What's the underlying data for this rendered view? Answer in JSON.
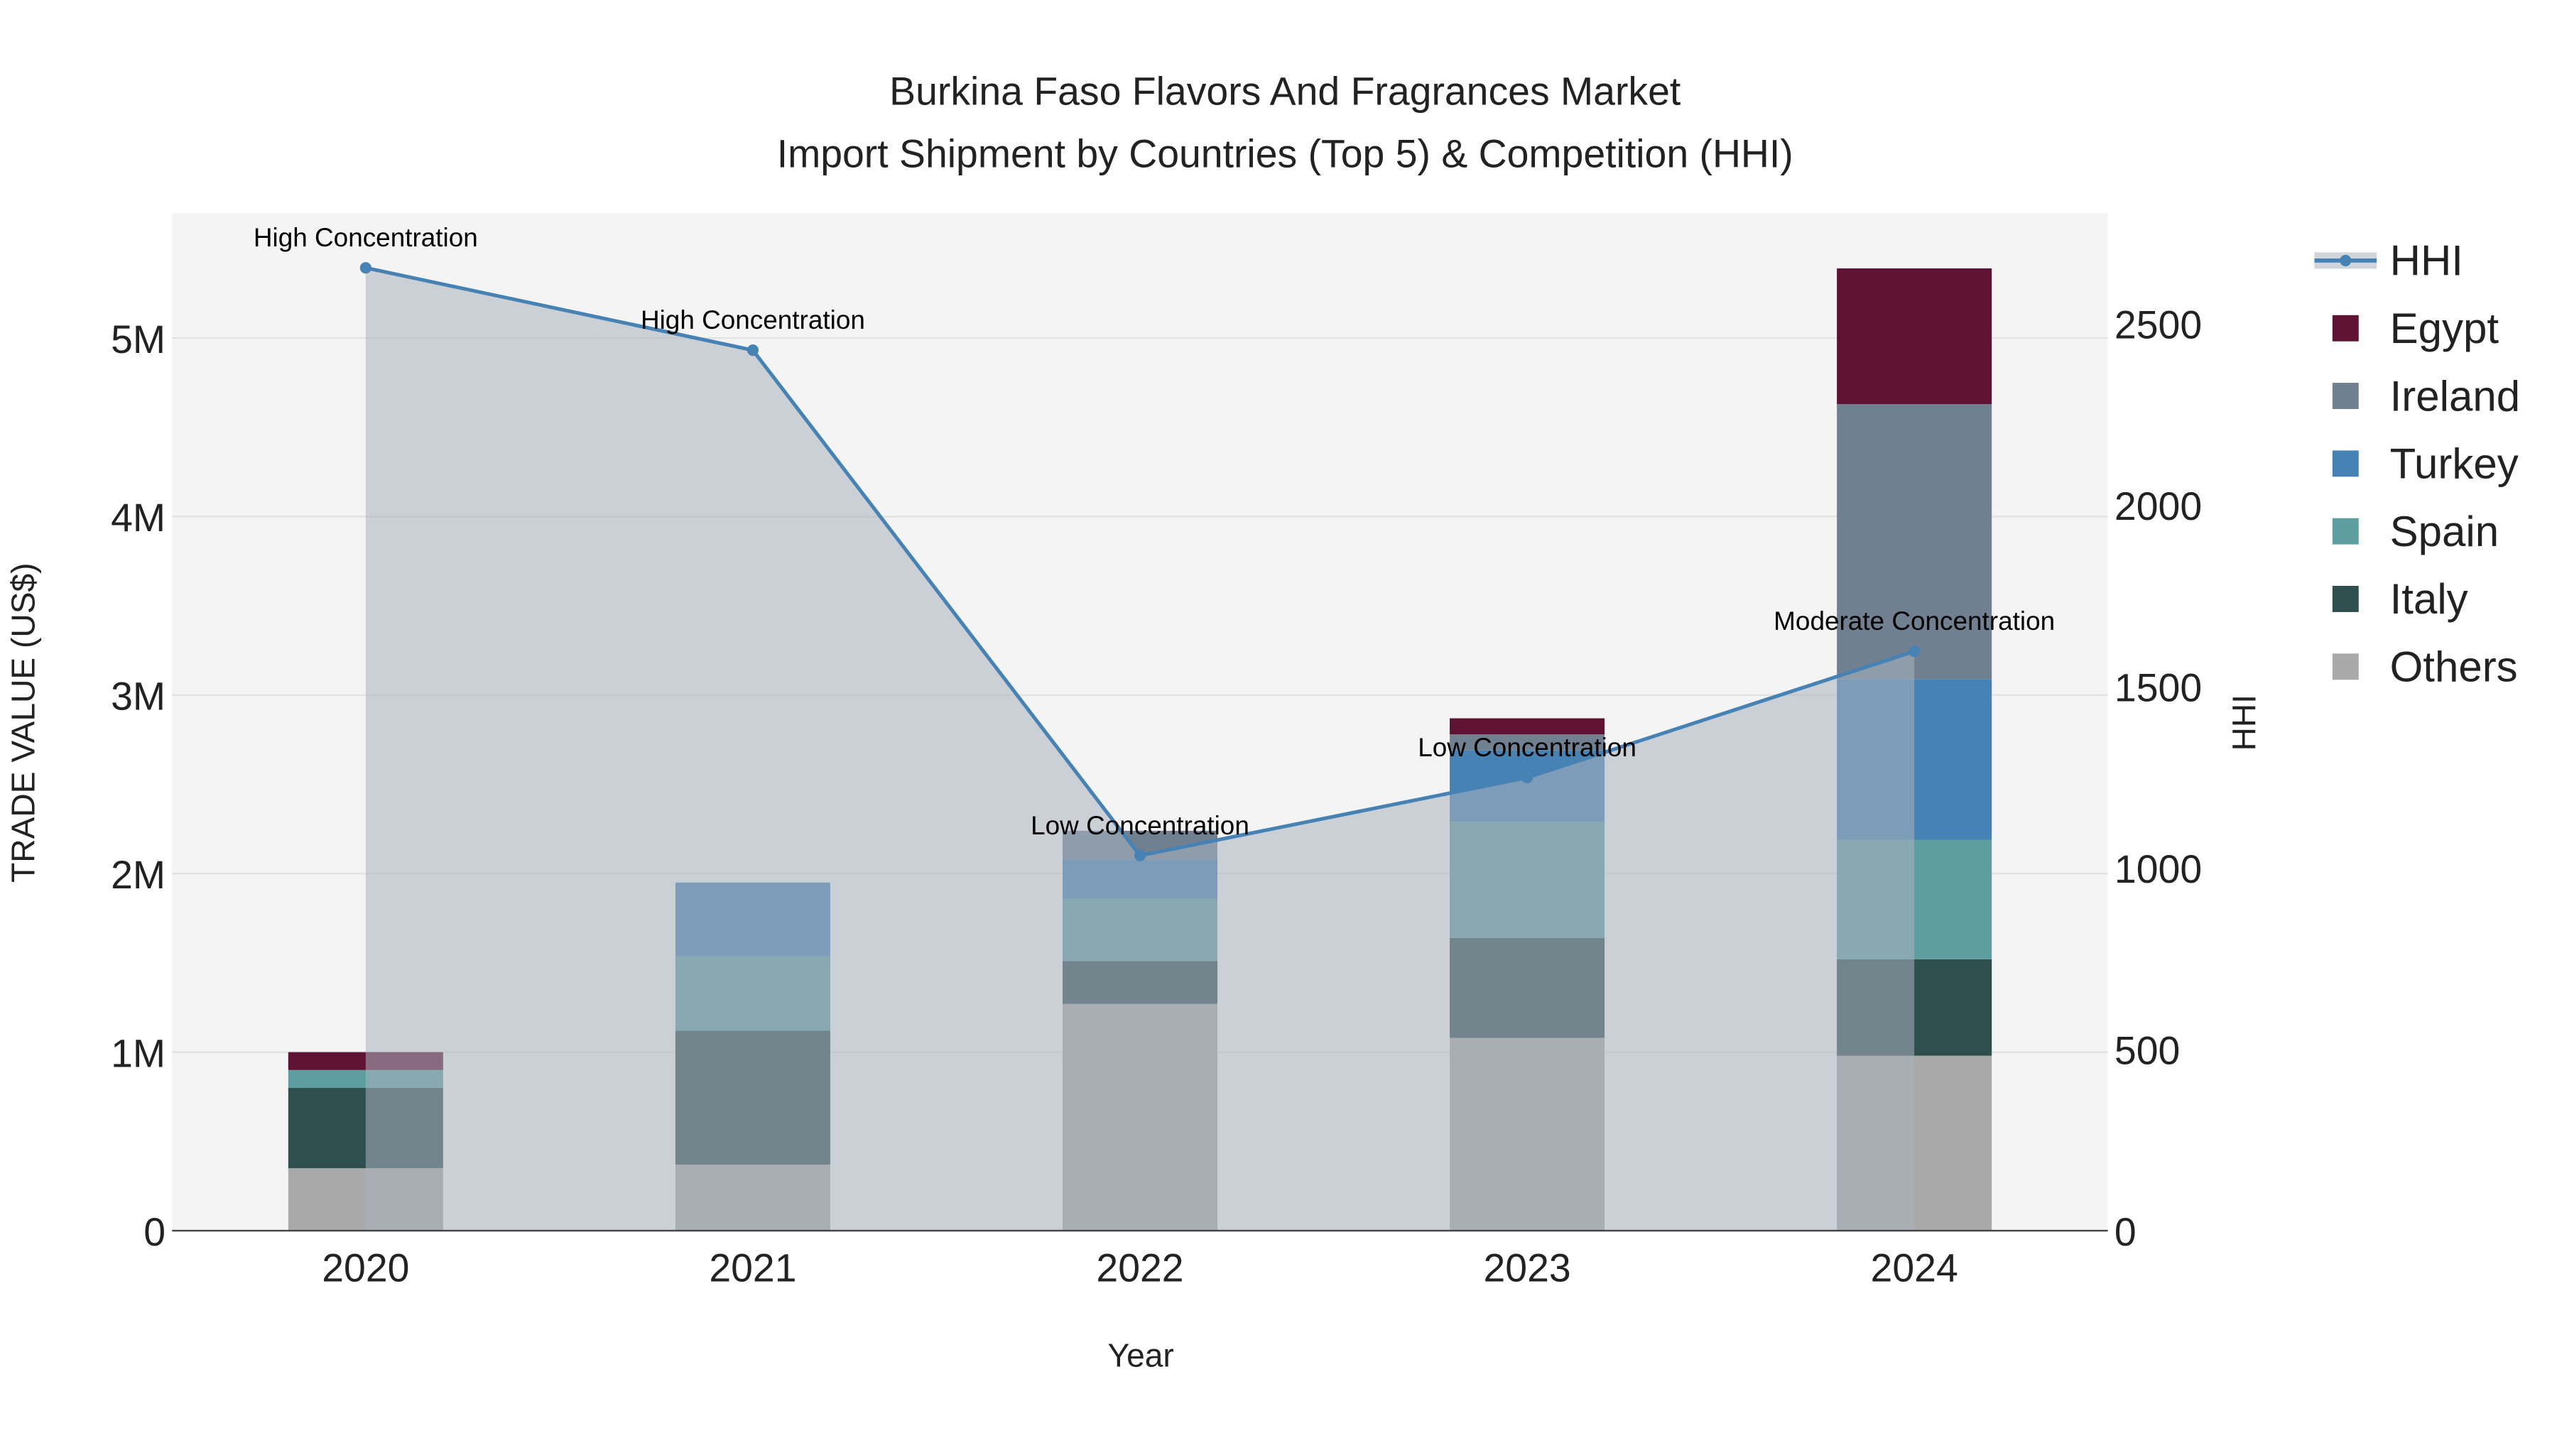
{
  "chart_data": {
    "type": "bar",
    "stacked": true,
    "title": "Burkina Faso Flavors And Fragrances Market",
    "subtitle": "Import Shipment by Countries (Top 5) & Competition (HHI)",
    "xlabel": "Year",
    "ylabel": "TRADE VALUE (US$)",
    "y2label": "HHI",
    "categories": [
      "2020",
      "2021",
      "2022",
      "2023",
      "2024"
    ],
    "ylim": [
      0,
      5700000
    ],
    "y2lim": [
      0,
      2805
    ],
    "yticks": [
      {
        "v": 0,
        "label": "0"
      },
      {
        "v": 1000000,
        "label": "1M"
      },
      {
        "v": 2000000,
        "label": "2M"
      },
      {
        "v": 3000000,
        "label": "3M"
      },
      {
        "v": 4000000,
        "label": "4M"
      },
      {
        "v": 5000000,
        "label": "5M"
      }
    ],
    "y2ticks": [
      {
        "v": 0,
        "label": "0"
      },
      {
        "v": 500,
        "label": "500"
      },
      {
        "v": 1000,
        "label": "1000"
      },
      {
        "v": 1500,
        "label": "1500"
      },
      {
        "v": 2000,
        "label": "2000"
      },
      {
        "v": 2500,
        "label": "2500"
      }
    ],
    "series": [
      {
        "name": "Others",
        "color": "#a9a9a9",
        "values": [
          350000,
          370000,
          1270000,
          1080000,
          980000
        ]
      },
      {
        "name": "Italy",
        "color": "#2f4f4f",
        "values": [
          450000,
          750000,
          240000,
          560000,
          540000
        ]
      },
      {
        "name": "Spain",
        "color": "#5f9ea0",
        "values": [
          100000,
          420000,
          350000,
          650000,
          670000
        ]
      },
      {
        "name": "Turkey",
        "color": "#4682b4",
        "values": [
          0,
          410000,
          220000,
          400000,
          900000
        ]
      },
      {
        "name": "Ireland",
        "color": "#708090",
        "values": [
          0,
          0,
          160000,
          90000,
          1540000
        ]
      },
      {
        "name": "Egypt",
        "color": "#5f1334",
        "values": [
          100000,
          0,
          0,
          90000,
          760000
        ]
      }
    ],
    "hhi": {
      "name": "HHI",
      "color": "#4682b4",
      "values": [
        2654,
        2427,
        1034,
        1249,
        1597
      ],
      "annotations": [
        "High Concentration",
        "High Concentration",
        "Low Concentration",
        "Low Concentration",
        "Moderate Concentration"
      ]
    },
    "legend_order": [
      "HHI",
      "Egypt",
      "Ireland",
      "Turkey",
      "Spain",
      "Italy",
      "Others"
    ],
    "legend_position": "right",
    "grid": true
  }
}
